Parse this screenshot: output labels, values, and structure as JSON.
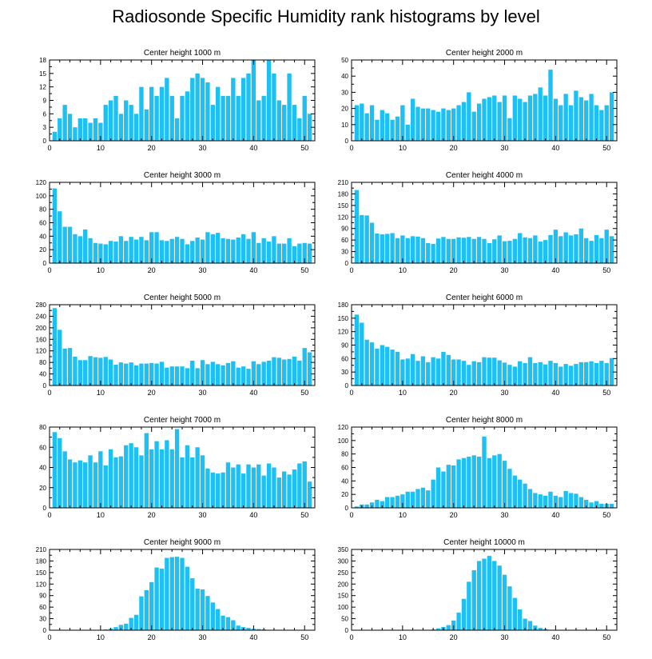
{
  "title": "Radiosonde Specific Humidity rank histograms by level",
  "colors": {
    "bar": "#1ec0f4",
    "axis": "#000000"
  },
  "chart_data": [
    {
      "type": "bar",
      "title": "Center height 1000 m",
      "xlim": [
        0,
        52
      ],
      "ylim": [
        0,
        18
      ],
      "yticks": [
        0,
        3,
        6,
        9,
        12,
        15,
        18
      ],
      "xticks": [
        0,
        10,
        20,
        30,
        40,
        50
      ],
      "x": [
        1,
        2,
        3,
        4,
        5,
        6,
        7,
        8,
        9,
        10,
        11,
        12,
        13,
        14,
        15,
        16,
        17,
        18,
        19,
        20,
        21,
        22,
        23,
        24,
        25,
        26,
        27,
        28,
        29,
        30,
        31,
        32,
        33,
        34,
        35,
        36,
        37,
        38,
        39,
        40,
        41,
        42,
        43,
        44,
        45,
        46,
        47,
        48,
        49,
        50,
        51
      ],
      "values": [
        2,
        5,
        8,
        6,
        3,
        5,
        5,
        4,
        5,
        4,
        8,
        9,
        10,
        6,
        9,
        8,
        6,
        12,
        7,
        12,
        10,
        12,
        14,
        10,
        5,
        10,
        11,
        14,
        15,
        14,
        13,
        8,
        12,
        10,
        10,
        14,
        10,
        14,
        15,
        18,
        9,
        10,
        18,
        15,
        9,
        8,
        15,
        8,
        5,
        10,
        6
      ]
    },
    {
      "type": "bar",
      "title": "Center height 2000 m",
      "xlim": [
        0,
        52
      ],
      "ylim": [
        0,
        50
      ],
      "yticks": [
        0,
        10,
        20,
        30,
        40,
        50
      ],
      "xticks": [
        0,
        10,
        20,
        30,
        40,
        50
      ],
      "x": [
        1,
        2,
        3,
        4,
        5,
        6,
        7,
        8,
        9,
        10,
        11,
        12,
        13,
        14,
        15,
        16,
        17,
        18,
        19,
        20,
        21,
        22,
        23,
        24,
        25,
        26,
        27,
        28,
        29,
        30,
        31,
        32,
        33,
        34,
        35,
        36,
        37,
        38,
        39,
        40,
        41,
        42,
        43,
        44,
        45,
        46,
        47,
        48,
        49,
        50,
        51
      ],
      "values": [
        22,
        23,
        17,
        22,
        13,
        19,
        17,
        13,
        15,
        22,
        10,
        26,
        21,
        20,
        20,
        19,
        18,
        20,
        19,
        20,
        22,
        24,
        30,
        18,
        23,
        26,
        27,
        28,
        24,
        28,
        14,
        28,
        26,
        24,
        28,
        29,
        33,
        28,
        44,
        26,
        22,
        29,
        22,
        31,
        27,
        25,
        29,
        22,
        19,
        22,
        30
      ]
    },
    {
      "type": "bar",
      "title": "Center height 3000 m",
      "xlim": [
        0,
        52
      ],
      "ylim": [
        0,
        120
      ],
      "yticks": [
        0,
        20,
        40,
        60,
        80,
        100,
        120
      ],
      "xticks": [
        0,
        10,
        20,
        30,
        40,
        50
      ],
      "x": [
        1,
        2,
        3,
        4,
        5,
        6,
        7,
        8,
        9,
        10,
        11,
        12,
        13,
        14,
        15,
        16,
        17,
        18,
        19,
        20,
        21,
        22,
        23,
        24,
        25,
        26,
        27,
        28,
        29,
        30,
        31,
        32,
        33,
        34,
        35,
        36,
        37,
        38,
        39,
        40,
        41,
        42,
        43,
        44,
        45,
        46,
        47,
        48,
        49,
        50,
        51
      ],
      "values": [
        111,
        77,
        54,
        54,
        43,
        40,
        50,
        37,
        30,
        29,
        28,
        33,
        32,
        40,
        33,
        39,
        35,
        39,
        34,
        46,
        46,
        34,
        33,
        36,
        39,
        36,
        28,
        33,
        38,
        35,
        46,
        43,
        45,
        37,
        36,
        35,
        38,
        43,
        36,
        46,
        30,
        37,
        32,
        40,
        29,
        29,
        37,
        25,
        29,
        30,
        29
      ]
    },
    {
      "type": "bar",
      "title": "Center height 4000 m",
      "xlim": [
        0,
        52
      ],
      "ylim": [
        0,
        210
      ],
      "yticks": [
        0,
        30,
        60,
        90,
        120,
        150,
        180,
        210
      ],
      "xticks": [
        0,
        10,
        20,
        30,
        40,
        50
      ],
      "x": [
        1,
        2,
        3,
        4,
        5,
        6,
        7,
        8,
        9,
        10,
        11,
        12,
        13,
        14,
        15,
        16,
        17,
        18,
        19,
        20,
        21,
        22,
        23,
        24,
        25,
        26,
        27,
        28,
        29,
        30,
        31,
        32,
        33,
        34,
        35,
        36,
        37,
        38,
        39,
        40,
        41,
        42,
        43,
        44,
        45,
        46,
        47,
        48,
        49,
        50,
        51
      ],
      "values": [
        190,
        125,
        124,
        105,
        77,
        75,
        76,
        78,
        65,
        72,
        65,
        70,
        69,
        65,
        52,
        50,
        64,
        68,
        63,
        63,
        67,
        66,
        68,
        63,
        68,
        63,
        52,
        62,
        72,
        57,
        58,
        63,
        78,
        67,
        65,
        72,
        56,
        60,
        73,
        87,
        70,
        80,
        72,
        75,
        90,
        65,
        58,
        73,
        65,
        87,
        70
      ]
    },
    {
      "type": "bar",
      "title": "Center height 5000 m",
      "xlim": [
        0,
        52
      ],
      "ylim": [
        0,
        280
      ],
      "yticks": [
        0,
        40,
        80,
        120,
        160,
        200,
        240,
        280
      ],
      "xticks": [
        0,
        10,
        20,
        30,
        40,
        50
      ],
      "x": [
        1,
        2,
        3,
        4,
        5,
        6,
        7,
        8,
        9,
        10,
        11,
        12,
        13,
        14,
        15,
        16,
        17,
        18,
        19,
        20,
        21,
        22,
        23,
        24,
        25,
        26,
        27,
        28,
        29,
        30,
        31,
        32,
        33,
        34,
        35,
        36,
        37,
        38,
        39,
        40,
        41,
        42,
        43,
        44,
        45,
        46,
        47,
        48,
        49,
        50,
        51
      ],
      "values": [
        268,
        193,
        128,
        130,
        100,
        88,
        88,
        102,
        98,
        96,
        99,
        90,
        72,
        80,
        76,
        80,
        70,
        76,
        76,
        78,
        76,
        82,
        62,
        66,
        66,
        66,
        60,
        86,
        60,
        88,
        74,
        82,
        74,
        70,
        78,
        84,
        62,
        66,
        58,
        84,
        74,
        82,
        86,
        98,
        96,
        90,
        92,
        100,
        86,
        130,
        115
      ]
    },
    {
      "type": "bar",
      "title": "Center height 6000 m",
      "xlim": [
        0,
        52
      ],
      "ylim": [
        0,
        180
      ],
      "yticks": [
        0,
        30,
        60,
        90,
        120,
        150,
        180
      ],
      "xticks": [
        0,
        10,
        20,
        30,
        40,
        50
      ],
      "x": [
        1,
        2,
        3,
        4,
        5,
        6,
        7,
        8,
        9,
        10,
        11,
        12,
        13,
        14,
        15,
        16,
        17,
        18,
        19,
        20,
        21,
        22,
        23,
        24,
        25,
        26,
        27,
        28,
        29,
        30,
        31,
        32,
        33,
        34,
        35,
        36,
        37,
        38,
        39,
        40,
        41,
        42,
        43,
        44,
        45,
        46,
        47,
        48,
        49,
        50,
        51
      ],
      "values": [
        158,
        140,
        102,
        96,
        82,
        90,
        86,
        80,
        75,
        58,
        60,
        70,
        55,
        65,
        52,
        63,
        60,
        75,
        68,
        58,
        58,
        55,
        46,
        54,
        52,
        63,
        62,
        62,
        56,
        51,
        46,
        42,
        54,
        50,
        63,
        50,
        52,
        47,
        55,
        50,
        42,
        48,
        44,
        48,
        52,
        52,
        54,
        50,
        55,
        50,
        61
      ]
    },
    {
      "type": "bar",
      "title": "Center height 7000 m",
      "xlim": [
        0,
        52
      ],
      "ylim": [
        0,
        80
      ],
      "yticks": [
        0,
        20,
        40,
        60,
        80
      ],
      "xticks": [
        0,
        10,
        20,
        30,
        40,
        50
      ],
      "x": [
        1,
        2,
        3,
        4,
        5,
        6,
        7,
        8,
        9,
        10,
        11,
        12,
        13,
        14,
        15,
        16,
        17,
        18,
        19,
        20,
        21,
        22,
        23,
        24,
        25,
        26,
        27,
        28,
        29,
        30,
        31,
        32,
        33,
        34,
        35,
        36,
        37,
        38,
        39,
        40,
        41,
        42,
        43,
        44,
        45,
        46,
        47,
        48,
        49,
        50,
        51
      ],
      "values": [
        75,
        69,
        56,
        48,
        45,
        47,
        45,
        52,
        45,
        56,
        42,
        58,
        50,
        51,
        62,
        64,
        60,
        52,
        74,
        58,
        66,
        58,
        67,
        58,
        78,
        50,
        62,
        50,
        60,
        52,
        39,
        35,
        34,
        35,
        45,
        40,
        43,
        34,
        43,
        40,
        43,
        32,
        44,
        40,
        30,
        36,
        33,
        38,
        44,
        46,
        26
      ]
    },
    {
      "type": "bar",
      "title": "Center height 8000 m",
      "xlim": [
        0,
        52
      ],
      "ylim": [
        0,
        120
      ],
      "yticks": [
        0,
        20,
        40,
        60,
        80,
        100,
        120
      ],
      "xticks": [
        0,
        10,
        20,
        30,
        40,
        50
      ],
      "x": [
        1,
        2,
        3,
        4,
        5,
        6,
        7,
        8,
        9,
        10,
        11,
        12,
        13,
        14,
        15,
        16,
        17,
        18,
        19,
        20,
        21,
        22,
        23,
        24,
        25,
        26,
        27,
        28,
        29,
        30,
        31,
        32,
        33,
        34,
        35,
        36,
        37,
        38,
        39,
        40,
        41,
        42,
        43,
        44,
        45,
        46,
        47,
        48,
        49,
        50,
        51
      ],
      "values": [
        2,
        5,
        5,
        8,
        12,
        10,
        16,
        16,
        18,
        20,
        24,
        24,
        28,
        30,
        26,
        42,
        60,
        54,
        64,
        63,
        72,
        74,
        76,
        78,
        76,
        106,
        74,
        78,
        80,
        70,
        58,
        48,
        42,
        36,
        28,
        22,
        20,
        18,
        24,
        18,
        16,
        25,
        22,
        21,
        16,
        12,
        8,
        10,
        6,
        6,
        6
      ]
    },
    {
      "type": "bar",
      "title": "Center height 9000 m",
      "xlim": [
        0,
        52
      ],
      "ylim": [
        0,
        210
      ],
      "yticks": [
        0,
        30,
        60,
        90,
        120,
        150,
        180,
        210
      ],
      "xticks": [
        0,
        10,
        20,
        30,
        40,
        50
      ],
      "x": [
        1,
        2,
        3,
        4,
        5,
        6,
        7,
        8,
        9,
        10,
        11,
        12,
        13,
        14,
        15,
        16,
        17,
        18,
        19,
        20,
        21,
        22,
        23,
        24,
        25,
        26,
        27,
        28,
        29,
        30,
        31,
        32,
        33,
        34,
        35,
        36,
        37,
        38,
        39,
        40,
        41,
        42,
        43,
        44,
        45,
        46,
        47,
        48,
        49,
        50,
        51
      ],
      "values": [
        0,
        0,
        0,
        0,
        0,
        0,
        0,
        0,
        1,
        1,
        2,
        4,
        8,
        14,
        17,
        32,
        40,
        88,
        104,
        125,
        163,
        160,
        188,
        190,
        191,
        188,
        165,
        135,
        108,
        106,
        89,
        72,
        55,
        38,
        34,
        26,
        12,
        8,
        6,
        4,
        3,
        2,
        1,
        1,
        0,
        0,
        0,
        0,
        0,
        0,
        0
      ]
    },
    {
      "type": "bar",
      "title": "Center height 10000 m",
      "xlim": [
        0,
        52
      ],
      "ylim": [
        0,
        350
      ],
      "yticks": [
        0,
        50,
        100,
        150,
        200,
        250,
        300,
        350
      ],
      "xticks": [
        0,
        10,
        20,
        30,
        40,
        50
      ],
      "x": [
        1,
        2,
        3,
        4,
        5,
        6,
        7,
        8,
        9,
        10,
        11,
        12,
        13,
        14,
        15,
        16,
        17,
        18,
        19,
        20,
        21,
        22,
        23,
        24,
        25,
        26,
        27,
        28,
        29,
        30,
        31,
        32,
        33,
        34,
        35,
        36,
        37,
        38,
        39,
        40,
        41,
        42,
        43,
        44,
        45,
        46,
        47,
        48,
        49,
        50,
        51
      ],
      "values": [
        0,
        0,
        0,
        0,
        0,
        0,
        0,
        0,
        0,
        0,
        0,
        0,
        0,
        0,
        0,
        3,
        8,
        14,
        22,
        42,
        76,
        136,
        210,
        260,
        300,
        310,
        322,
        300,
        280,
        240,
        190,
        140,
        90,
        50,
        40,
        20,
        10,
        5,
        2,
        1,
        0,
        0,
        0,
        0,
        0,
        0,
        0,
        0,
        0,
        0,
        0
      ]
    }
  ]
}
